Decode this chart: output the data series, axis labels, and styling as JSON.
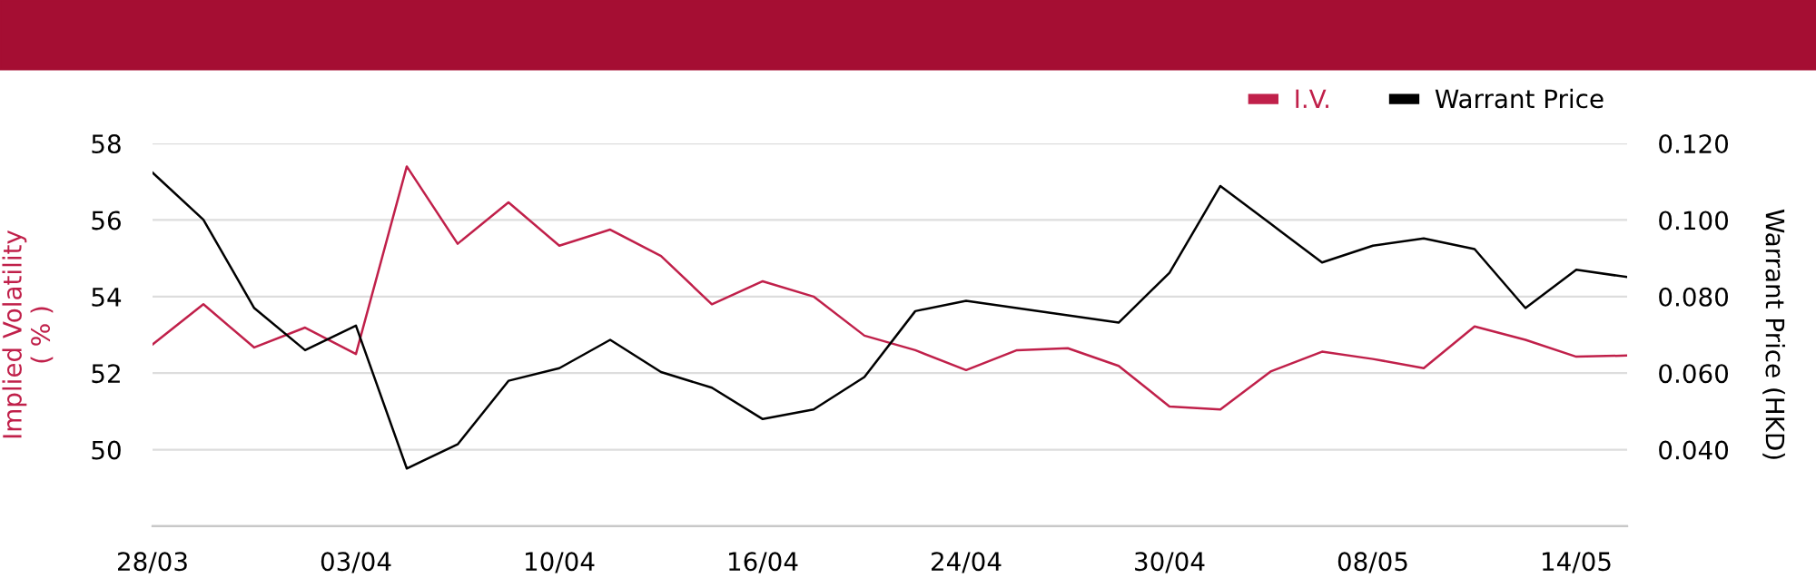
{
  "chart_data": {
    "type": "line",
    "categories": [
      "28/03",
      null,
      null,
      null,
      "03/04",
      null,
      null,
      null,
      "10/04",
      null,
      null,
      null,
      "16/04",
      null,
      null,
      null,
      "24/04",
      null,
      null,
      null,
      "30/04",
      null,
      null,
      null,
      "08/05",
      null,
      null,
      null,
      "14/05",
      null
    ],
    "series": [
      {
        "name": "I.V.",
        "color": "#c0204a",
        "values": [
          52.75,
          53.8,
          52.67,
          53.19,
          52.5,
          57.4,
          55.38,
          56.46,
          55.33,
          55.75,
          55.06,
          53.8,
          54.4,
          54.0,
          52.98,
          52.6,
          52.08,
          52.6,
          52.65,
          52.19,
          51.13,
          51.05,
          52.05,
          52.56,
          52.37,
          52.13,
          53.22,
          52.87,
          52.43,
          52.46
        ]
      },
      {
        "name": "Warrant Price",
        "color": "#000000",
        "axis": "y2",
        "values": [
          0.1124,
          0.1001,
          0.077,
          0.066,
          0.0724,
          0.0351,
          0.0414,
          0.058,
          0.0613,
          0.0687,
          0.0603,
          0.0562,
          0.048,
          0.0505,
          0.059,
          0.0762,
          0.0789,
          0.077,
          0.0751,
          0.0732,
          0.0862,
          0.1089,
          0.0989,
          0.0889,
          0.0933,
          0.0952,
          0.0924,
          0.077,
          0.087,
          0.0851
        ]
      }
    ],
    "ylabel": "Implied Volatility\n( % )",
    "y2label": "Warrant Price (HKD)",
    "ylim": [
      48,
      58
    ],
    "yticks": [
      50,
      52,
      54,
      56,
      58
    ],
    "y2lim": [
      0.02,
      0.12
    ],
    "y2ticks": [
      {
        "value": 0.04,
        "label": "0.040"
      },
      {
        "value": 0.06,
        "label": "0.060"
      },
      {
        "value": 0.08,
        "label": "0.080"
      },
      {
        "value": 0.1,
        "label": "0.100"
      },
      {
        "value": 0.12,
        "label": "0.120"
      }
    ],
    "grid": "y",
    "legend": "top right",
    "marker": "none",
    "line_style": "solid"
  }
}
